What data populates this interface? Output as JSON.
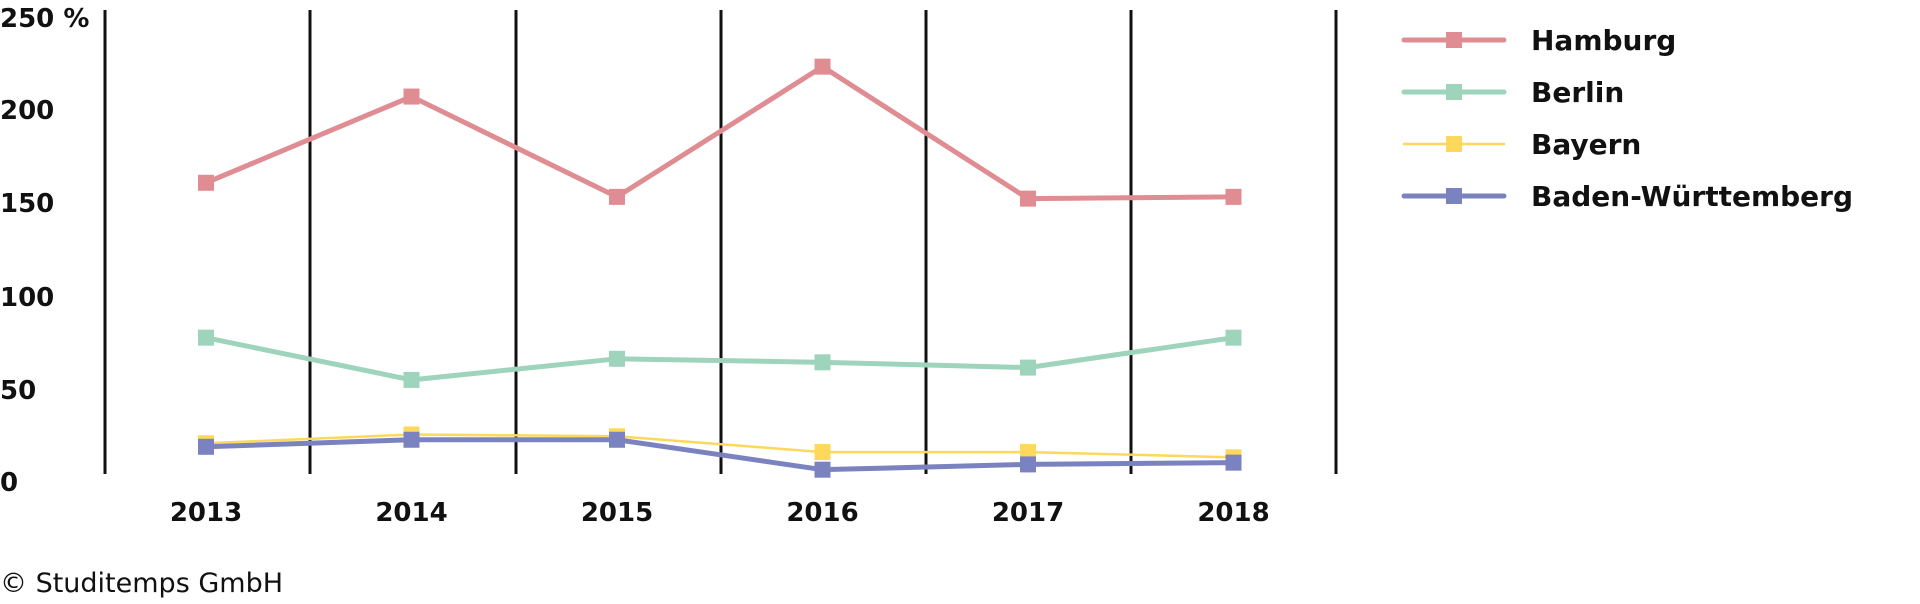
{
  "chart_data": {
    "type": "line",
    "categories": [
      "2013",
      "2014",
      "2015",
      "2016",
      "2017",
      "2018"
    ],
    "y_ticks": [
      "0",
      "50",
      "100",
      "150",
      "200",
      "250 %"
    ],
    "ylim": [
      0,
      250
    ],
    "series": [
      {
        "name": "Hamburg",
        "color": "#e08c93",
        "values": [
          170,
          219,
          162,
          236,
          161,
          162
        ]
      },
      {
        "name": "Berlin",
        "color": "#9ed3bc",
        "values": [
          82,
          58,
          70,
          68,
          65,
          82
        ]
      },
      {
        "name": "Bayern",
        "color": "#fdd85c",
        "values": [
          22,
          27,
          26,
          17,
          17,
          14
        ]
      },
      {
        "name": "Baden-Württemberg",
        "color": "#7b82c0",
        "values": [
          20,
          24,
          24,
          7,
          10,
          11
        ]
      }
    ],
    "legend_position": "top-right",
    "grid": "vertical lines between years"
  },
  "footer": {
    "copyright": "© Studitemps GmbH"
  }
}
